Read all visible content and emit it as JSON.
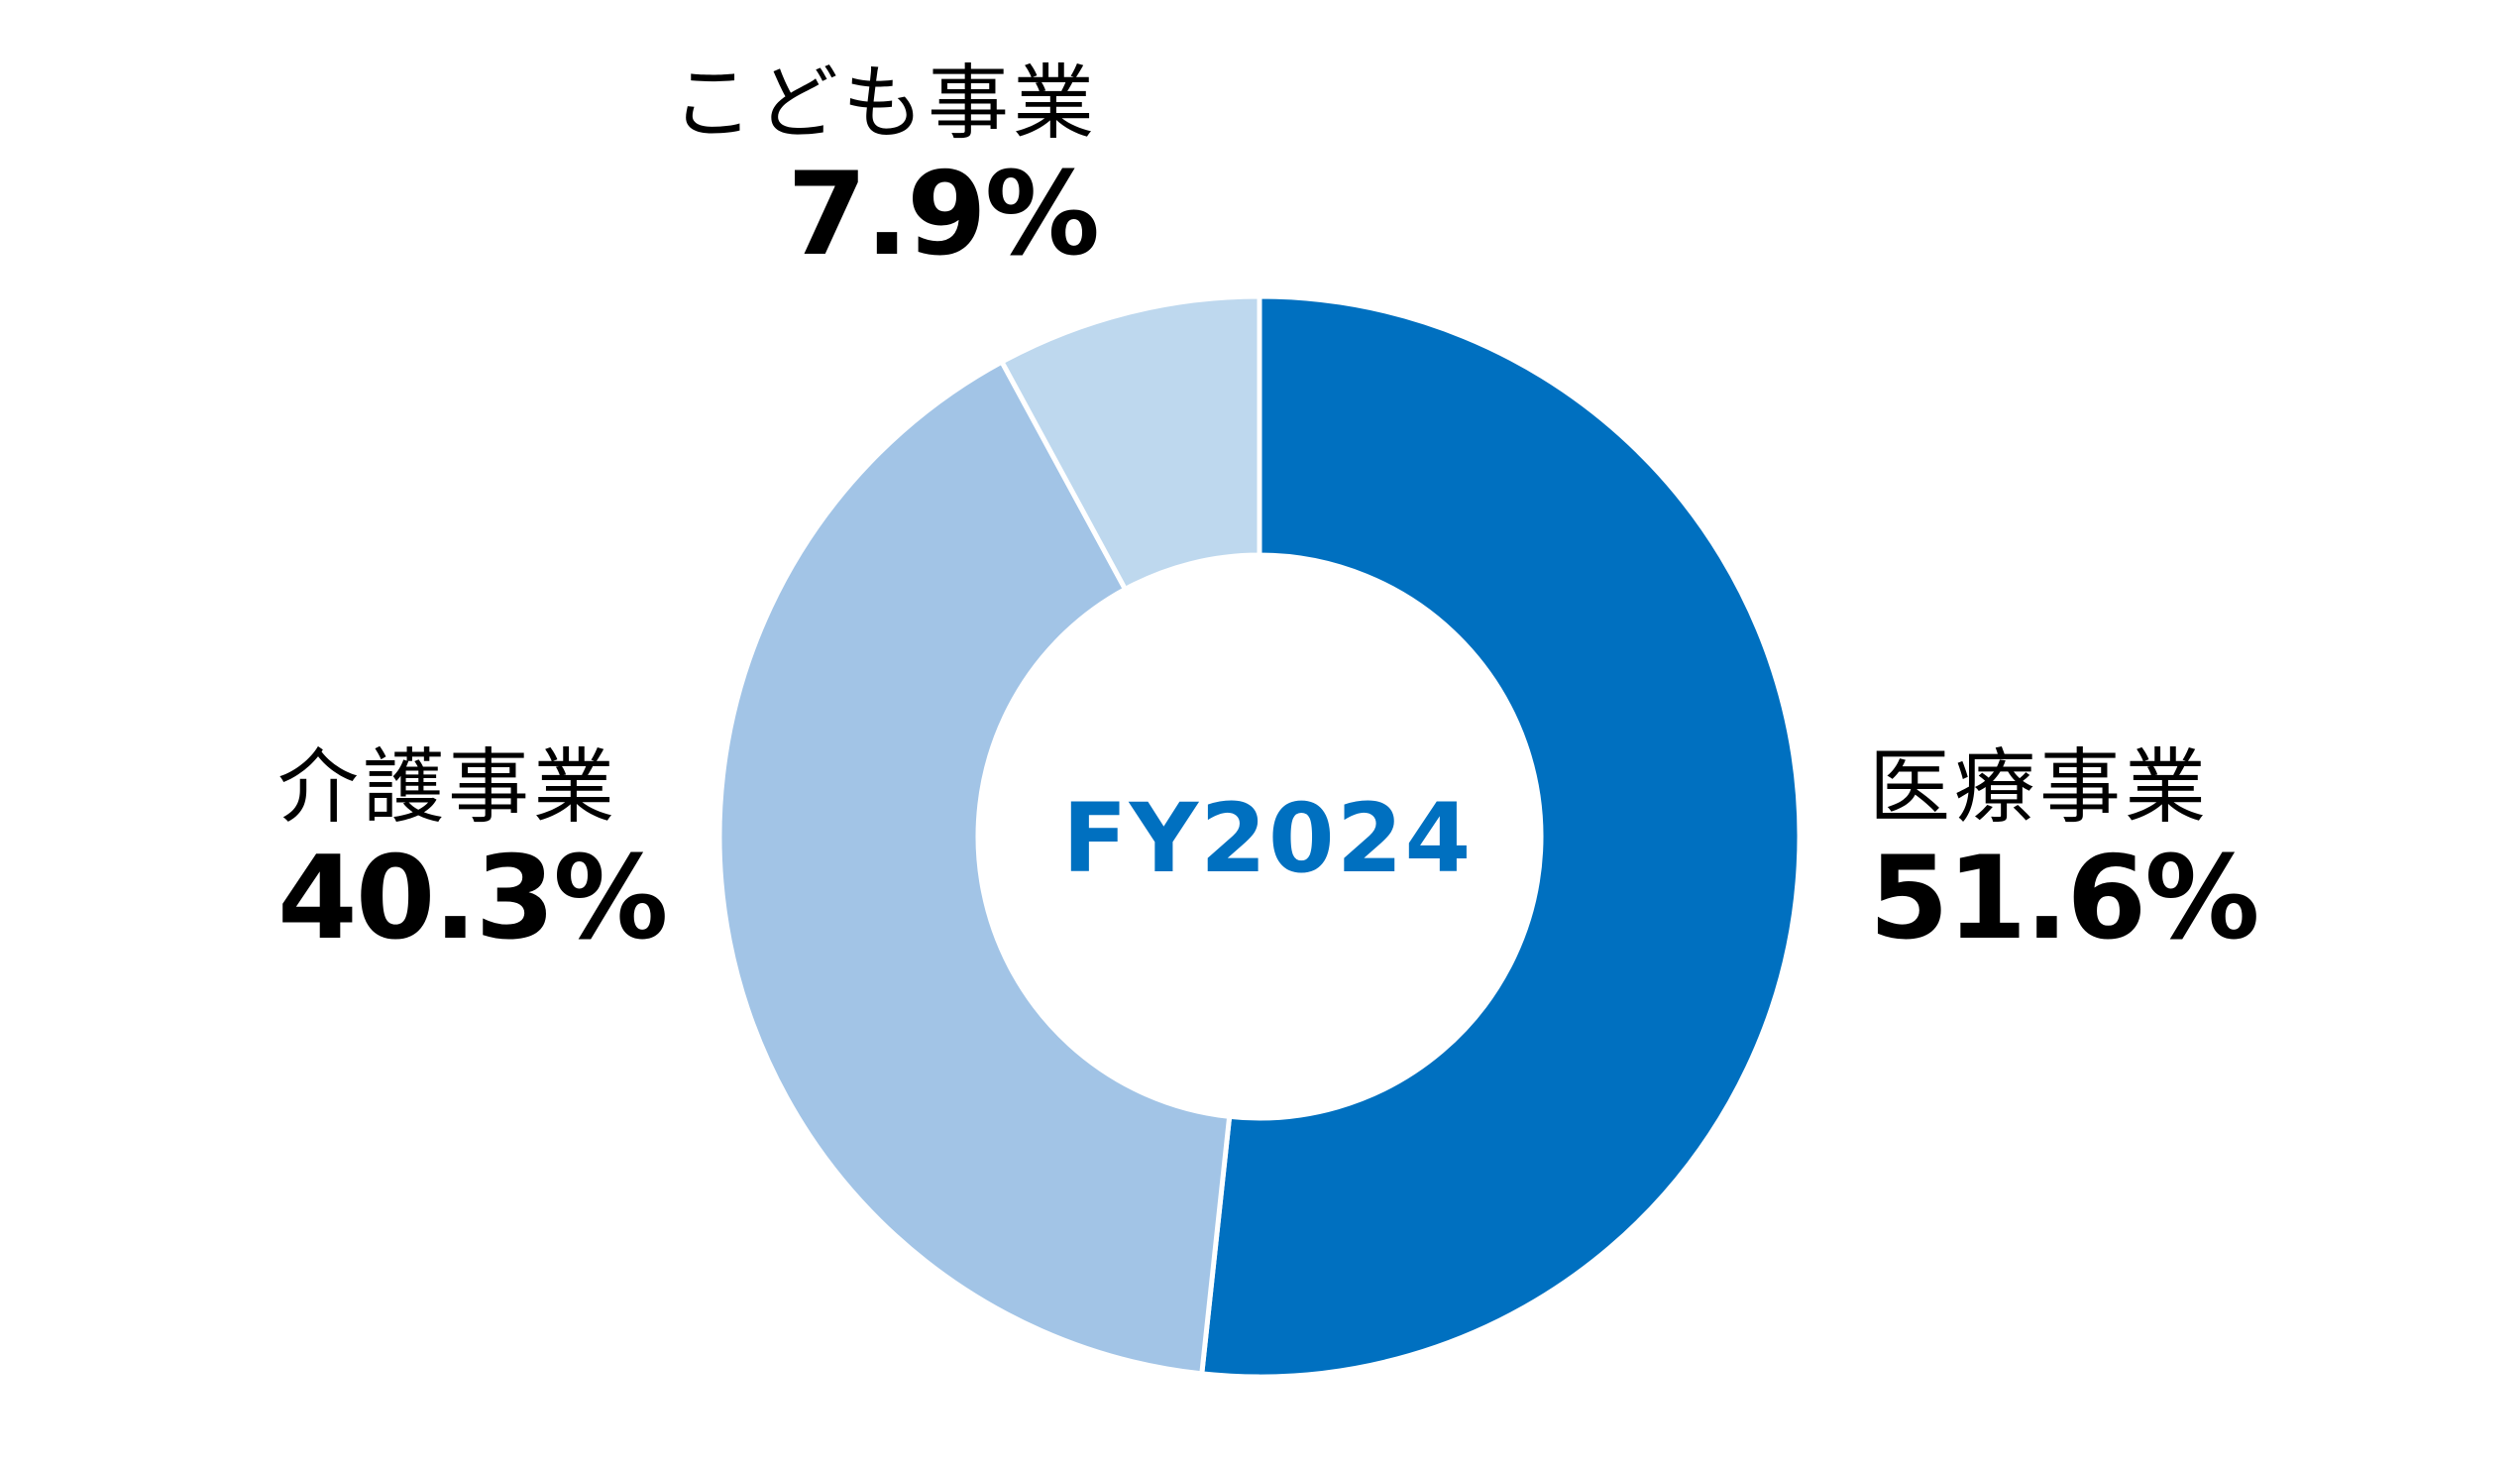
{
  "chart_data": {
    "type": "pie",
    "donut": true,
    "title": "",
    "center_label": "FY2024",
    "start_angle_deg": 0,
    "direction": "clockwise",
    "unit": "%",
    "slices": [
      {
        "label": "医療事業",
        "value": 51.6,
        "value_text": "51.6%",
        "color": "#0070C0"
      },
      {
        "label": "介護事業",
        "value": 40.3,
        "value_text": "40.3%",
        "color": "#A2C4E6"
      },
      {
        "label": "こども事業",
        "value": 7.9,
        "value_text": "7.9%",
        "color": "#BED8EE"
      }
    ]
  },
  "colors": {
    "center_label": "#0070C0",
    "label_text": "#000000",
    "background": "#FFFFFF",
    "separator": "#FFFFFF"
  }
}
